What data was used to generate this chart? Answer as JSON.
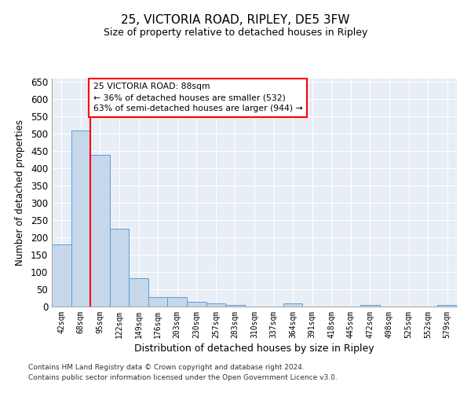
{
  "title1": "25, VICTORIA ROAD, RIPLEY, DE5 3FW",
  "title2": "Size of property relative to detached houses in Ripley",
  "xlabel": "Distribution of detached houses by size in Ripley",
  "ylabel": "Number of detached properties",
  "categories": [
    "42sqm",
    "68sqm",
    "95sqm",
    "122sqm",
    "149sqm",
    "176sqm",
    "203sqm",
    "230sqm",
    "257sqm",
    "283sqm",
    "310sqm",
    "337sqm",
    "364sqm",
    "391sqm",
    "418sqm",
    "445sqm",
    "472sqm",
    "498sqm",
    "525sqm",
    "552sqm",
    "579sqm"
  ],
  "values": [
    180,
    510,
    440,
    225,
    83,
    27,
    27,
    14,
    8,
    5,
    0,
    0,
    9,
    0,
    0,
    0,
    5,
    0,
    0,
    0,
    5
  ],
  "bar_color": "#c5d8eb",
  "bar_edge_color": "#5b9bd5",
  "marker_line_index": 2,
  "marker_label": "25 VICTORIA ROAD: 88sqm",
  "smaller_pct": "36% of detached houses are smaller (532)",
  "larger_pct": "63% of semi-detached houses are larger (944)",
  "ylim": [
    0,
    660
  ],
  "yticks": [
    0,
    50,
    100,
    150,
    200,
    250,
    300,
    350,
    400,
    450,
    500,
    550,
    600,
    650
  ],
  "footnote1": "Contains HM Land Registry data © Crown copyright and database right 2024.",
  "footnote2": "Contains public sector information licensed under the Open Government Licence v3.0.",
  "background_color": "#e8eef5"
}
